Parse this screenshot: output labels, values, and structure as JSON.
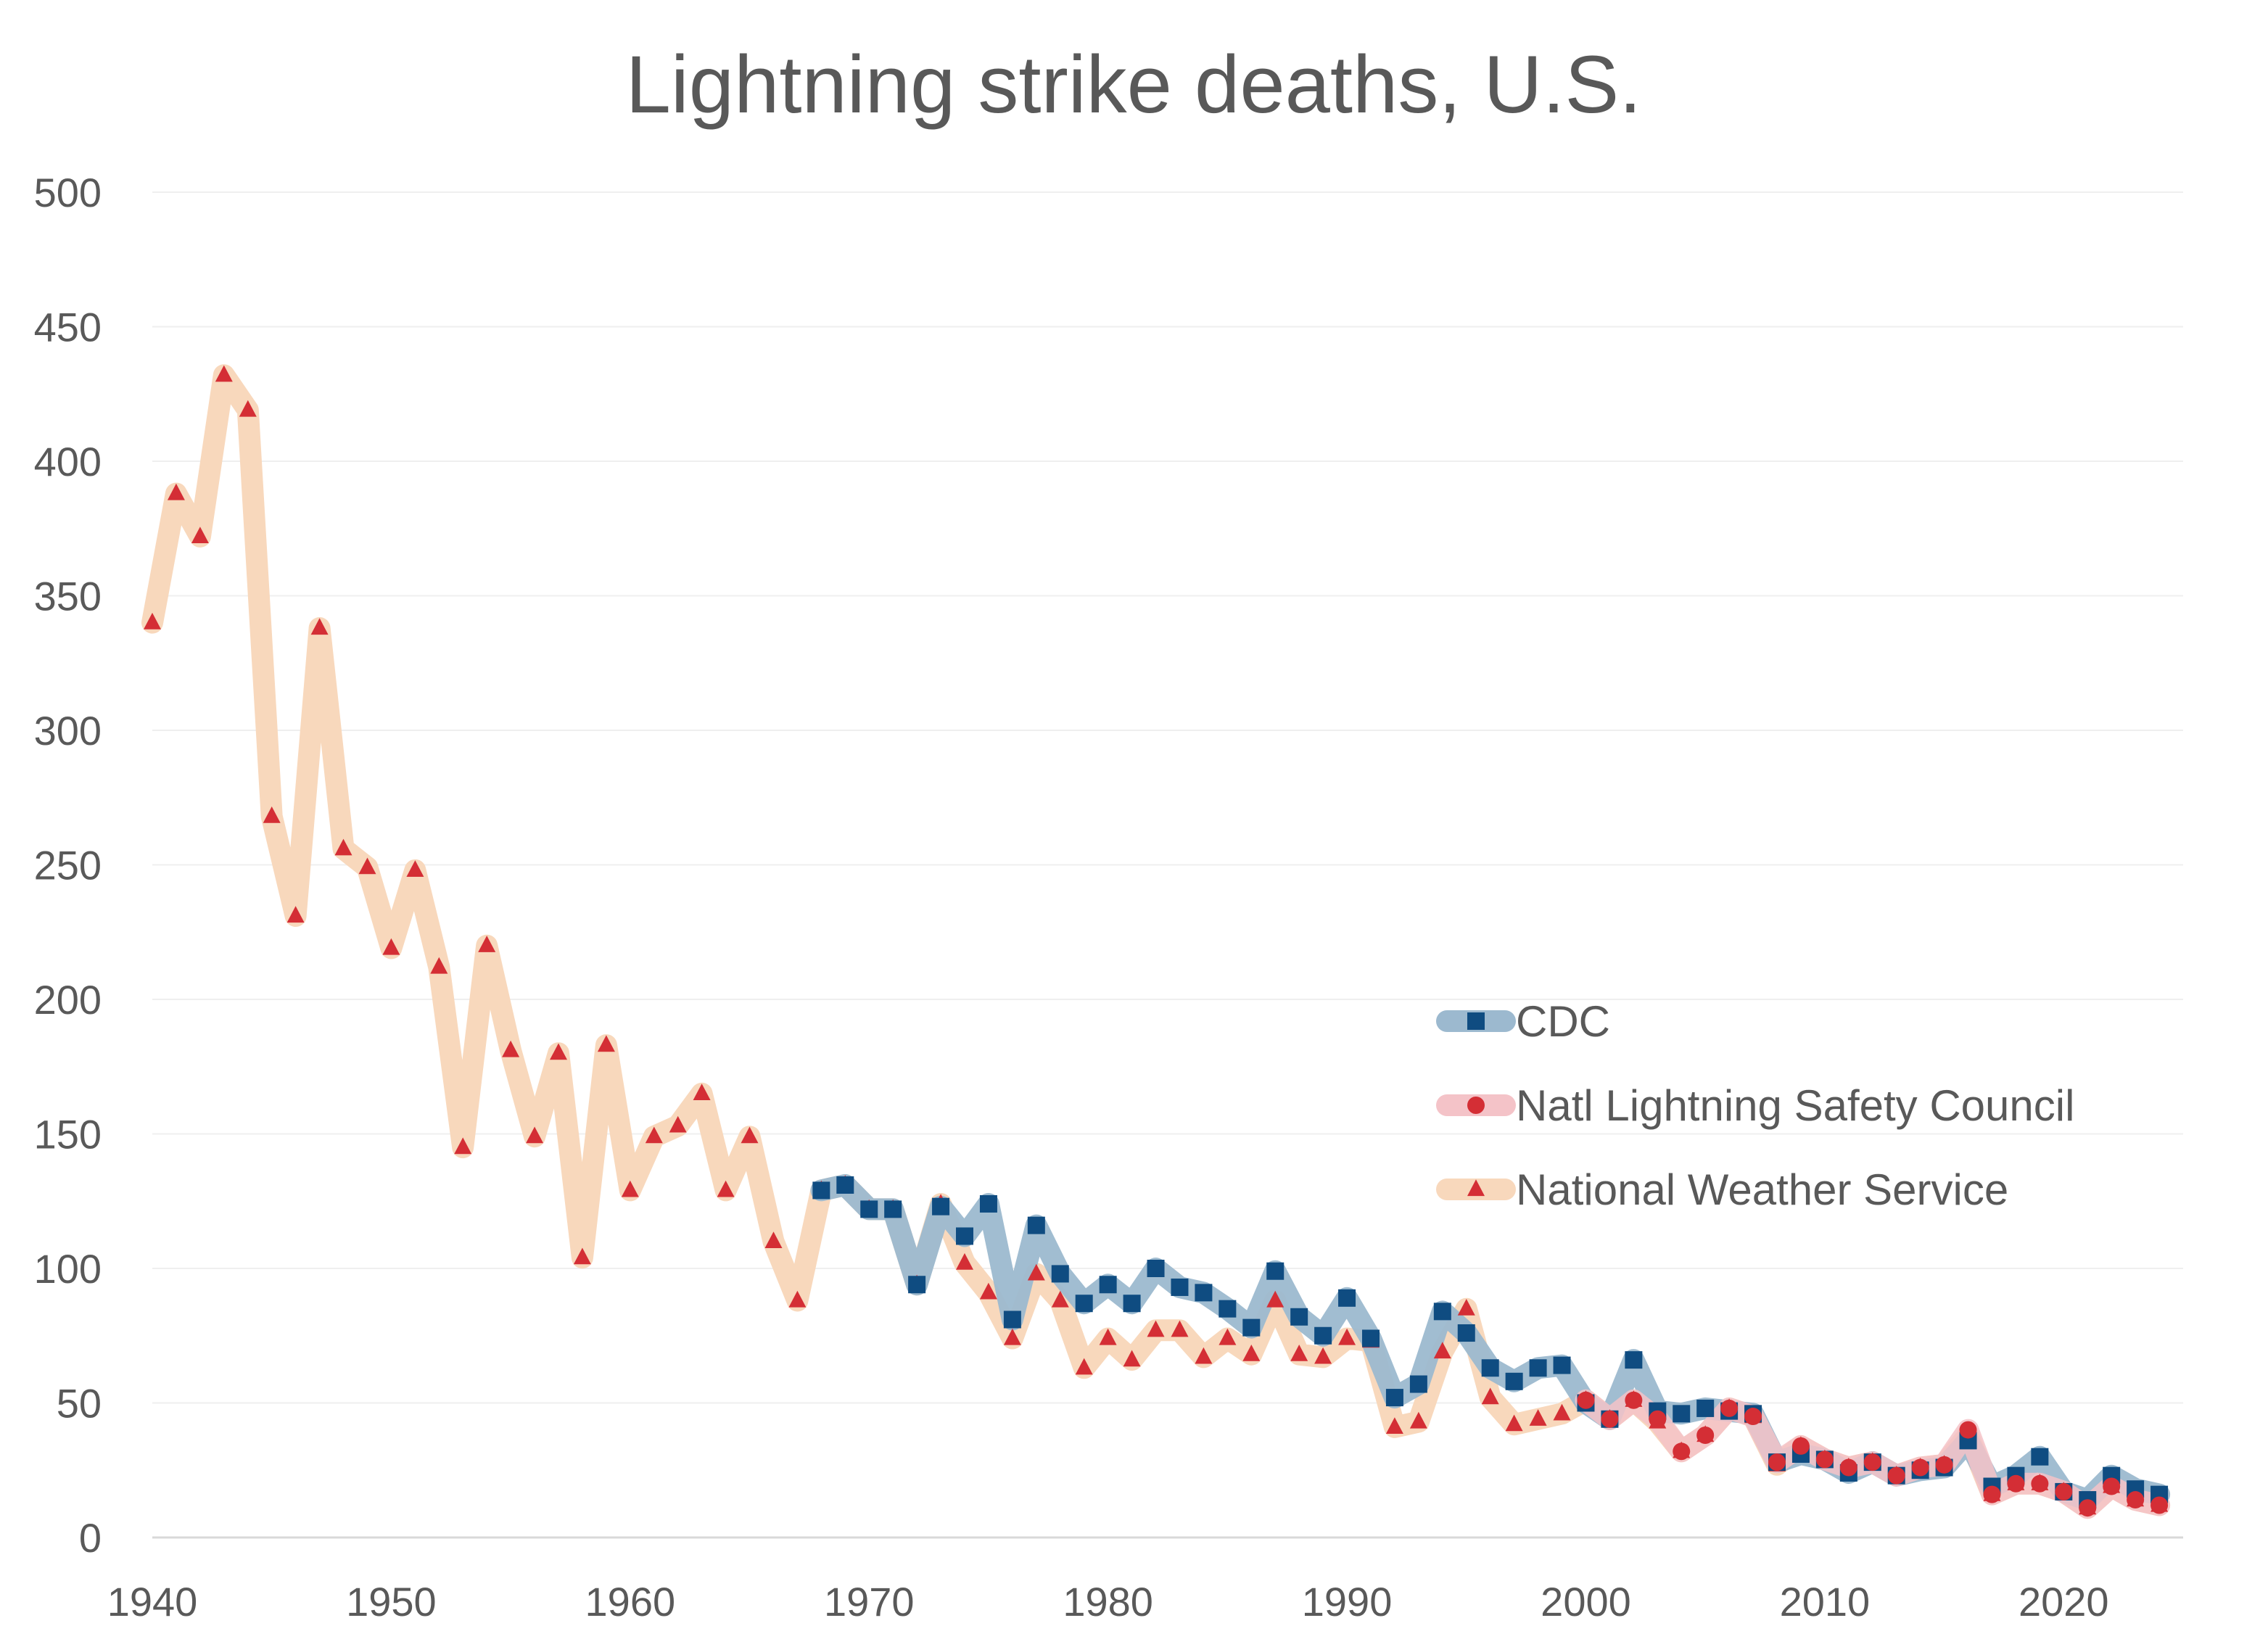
{
  "chart_data": {
    "type": "line",
    "title": "Lightning strike deaths, U.S.",
    "xlabel": "",
    "ylabel": "",
    "xlim": [
      1940,
      2025
    ],
    "ylim": [
      0,
      500
    ],
    "x_ticks": [
      "1940",
      "1950",
      "1960",
      "1970",
      "1980",
      "1990",
      "2000",
      "2010",
      "2020"
    ],
    "y_ticks": [
      "0",
      "50",
      "100",
      "150",
      "200",
      "250",
      "300",
      "350",
      "400",
      "450",
      "500"
    ],
    "grid": "horizontal",
    "legend_position": "right-middle",
    "series": [
      {
        "name": "CDC",
        "line_color": "#9cb9cf",
        "marker_color": "#0f4c81",
        "marker": "square",
        "x": [
          1968,
          1969,
          1970,
          1971,
          1972,
          1973,
          1974,
          1975,
          1976,
          1977,
          1978,
          1979,
          1980,
          1981,
          1982,
          1983,
          1984,
          1985,
          1986,
          1987,
          1988,
          1989,
          1990,
          1991,
          1992,
          1993,
          1994,
          1995,
          1996,
          1997,
          1998,
          1999,
          2000,
          2001,
          2002,
          2003,
          2004,
          2005,
          2006,
          2007,
          2008,
          2009,
          2010,
          2011,
          2012,
          2013,
          2014,
          2015,
          2016,
          2017,
          2018,
          2019,
          2020,
          2021,
          2022,
          2023,
          2024
        ],
        "y": [
          129,
          131,
          122,
          122,
          94,
          123,
          112,
          124,
          81,
          116,
          98,
          87,
          94,
          87,
          100,
          93,
          91,
          85,
          78,
          99,
          82,
          75,
          89,
          74,
          52,
          57,
          84,
          76,
          63,
          58,
          63,
          64,
          50,
          44,
          66,
          47,
          46,
          48,
          47,
          46,
          28,
          31,
          29,
          24,
          28,
          23,
          25,
          26,
          36,
          19,
          23,
          30,
          17,
          14,
          23,
          18,
          16
        ]
      },
      {
        "name": "Natl Lightning Safety Council",
        "line_color": "#f4c3c8",
        "marker_color": "#d42e35",
        "marker": "circle",
        "x": [
          2000,
          2001,
          2002,
          2003,
          2004,
          2005,
          2006,
          2007,
          2008,
          2009,
          2010,
          2011,
          2012,
          2013,
          2014,
          2015,
          2016,
          2017,
          2018,
          2019,
          2020,
          2021,
          2022,
          2023,
          2024
        ],
        "y": [
          51,
          44,
          51,
          44,
          32,
          38,
          48,
          45,
          28,
          34,
          29,
          26,
          28,
          23,
          26,
          27,
          40,
          16,
          20,
          20,
          17,
          11,
          19,
          14,
          12
        ]
      },
      {
        "name": "National Weather Service",
        "line_color": "#f8d8bc",
        "marker_color": "#d42e35",
        "marker": "triangle",
        "x": [
          1940,
          1941,
          1942,
          1943,
          1944,
          1945,
          1946,
          1947,
          1948,
          1949,
          1950,
          1951,
          1952,
          1953,
          1954,
          1955,
          1956,
          1957,
          1958,
          1959,
          1960,
          1961,
          1962,
          1963,
          1964,
          1965,
          1966,
          1967,
          1968,
          1969,
          1970,
          1971,
          1972,
          1973,
          1974,
          1975,
          1976,
          1977,
          1978,
          1979,
          1980,
          1981,
          1982,
          1983,
          1984,
          1985,
          1986,
          1987,
          1988,
          1989,
          1990,
          1991,
          1992,
          1993,
          1994,
          1995,
          1996,
          1997,
          1998,
          1999,
          2000,
          2001,
          2002,
          2003,
          2004,
          2005,
          2006,
          2007,
          2008,
          2009,
          2010,
          2011,
          2012,
          2013,
          2014,
          2015,
          2016,
          2017,
          2018,
          2019,
          2020,
          2021,
          2022,
          2023,
          2024
        ],
        "y": [
          340,
          388,
          372,
          432,
          419,
          268,
          231,
          338,
          256,
          249,
          219,
          248,
          212,
          145,
          220,
          181,
          149,
          180,
          104,
          183,
          129,
          149,
          153,
          165,
          129,
          149,
          110,
          88,
          129,
          131,
          122,
          122,
          94,
          124,
          102,
          91,
          74,
          98,
          88,
          63,
          74,
          66,
          77,
          77,
          67,
          74,
          68,
          88,
          68,
          67,
          74,
          73,
          41,
          43,
          69,
          85,
          52,
          42,
          44,
          46,
          51,
          44,
          51,
          43,
          32,
          38,
          48,
          45,
          27,
          34,
          29,
          26,
          28,
          23,
          26,
          27,
          38,
          16,
          20,
          20,
          17,
          11,
          19,
          14,
          12
        ]
      }
    ]
  }
}
